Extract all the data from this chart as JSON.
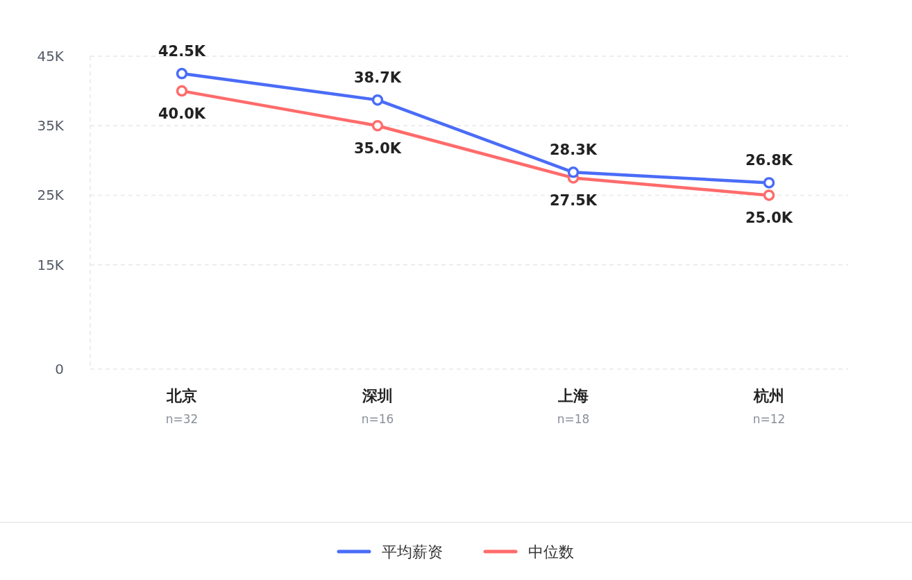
{
  "chart_data": {
    "type": "line",
    "categories": [
      "北京",
      "深圳",
      "上海",
      "杭州"
    ],
    "series": [
      {
        "name": "平均薪资",
        "color": "#4a6cf7",
        "values": [
          42500,
          38700,
          28300,
          26800
        ],
        "value_labels": [
          "42.5K",
          "38.7K",
          "28.3K",
          "26.8K"
        ]
      },
      {
        "name": "中位数",
        "color": "#ff6b6b",
        "values": [
          40000,
          35000,
          27500,
          25000
        ],
        "value_labels": [
          "40.0K",
          "35.0K",
          "27.5K",
          "25.0K"
        ]
      }
    ],
    "ylim": [
      0,
      45000
    ],
    "yticks": [
      {
        "value": 0,
        "label": "0"
      },
      {
        "value": 15000,
        "label": "15K"
      },
      {
        "value": 25000,
        "label": "25K"
      },
      {
        "value": 35000,
        "label": "35K"
      },
      {
        "value": 45000,
        "label": "45K"
      }
    ],
    "annotations": [
      "n=32",
      "n=16",
      "n=18",
      "n=12"
    ],
    "grid": "y",
    "legend": "bottom",
    "marker": "circle",
    "line_style": "solid"
  }
}
